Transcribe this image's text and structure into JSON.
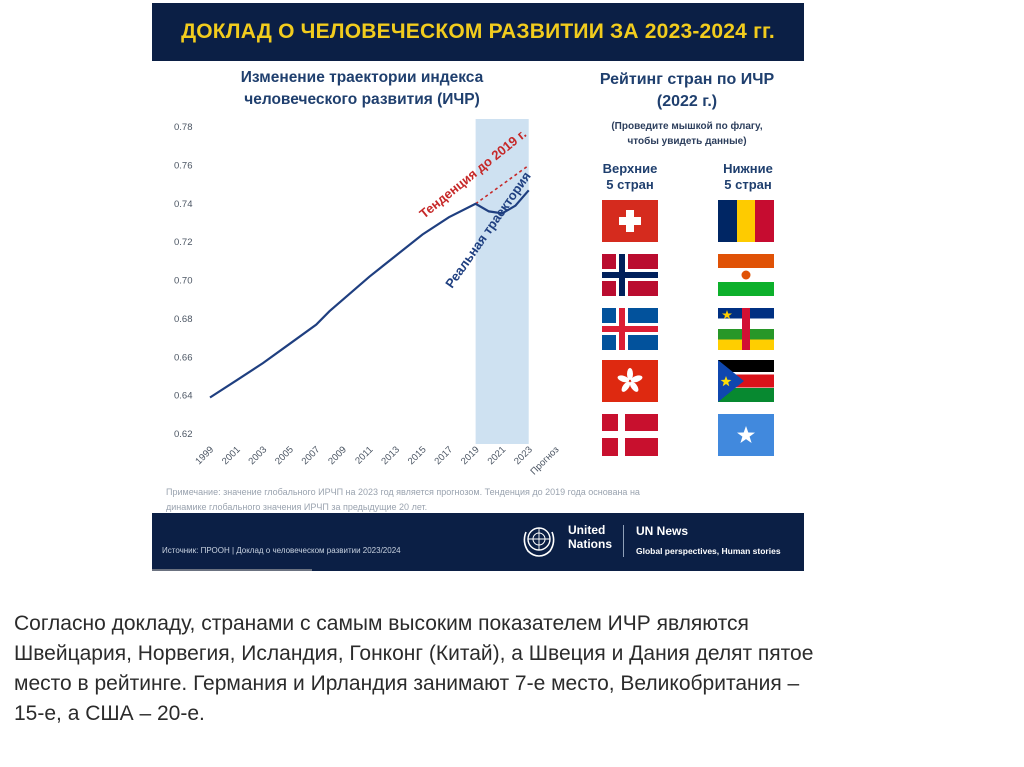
{
  "slide": {
    "banner_title": "ДОКЛАД О ЧЕЛОВЕЧЕСКОМ РАЗВИТИИ ЗА 2023-2024 гг.",
    "chart_title_line1": "Изменение траектории индекса",
    "chart_title_line2": "человеческого развития (ИЧР)",
    "note_line1": "Примечание: значение глобального ИРЧП на 2023 год является прогнозом. Тенденция до 2019 года основана на",
    "note_line2": "динамике глобального значения ИРЧП за предыдущие 20 лет.",
    "ranking": {
      "title_line1": "Рейтинг стран по ИЧР",
      "title_line2": "(2022 г.)",
      "subtitle_line1": "(Проведите мышкой по флагу,",
      "subtitle_line2": "чтобы увидеть данные)",
      "top_heading_line1": "Верхние",
      "top_heading_line2": "5 стран",
      "bottom_heading_line1": "Нижние",
      "bottom_heading_line2": "5 стран",
      "top_flags": [
        "switzerland-flag",
        "norway-flag",
        "iceland-flag",
        "hong-kong-flag",
        "denmark-flag"
      ],
      "bottom_flags": [
        "chad-flag",
        "niger-flag",
        "central-african-republic-flag",
        "south-sudan-flag",
        "somalia-flag"
      ]
    },
    "footer": {
      "source": "Источник: ПРООН | Доклад о человеческом развитии 2023/2024",
      "un_name_line1": "United",
      "un_name_line2": "Nations",
      "news": "UN News",
      "tagline": "Global perspectives, Human stories"
    },
    "colors": {
      "banner_bg": "#0b1f45",
      "banner_text": "#f2cc1d",
      "line": "#1f3f80",
      "trend": "#c62828",
      "highlight": "#c5dcee"
    }
  },
  "chart_data": {
    "type": "line",
    "title": "Изменение траектории индекса человеческого развития (ИЧР)",
    "x_tick_labels": [
      "1999",
      "2001",
      "2003",
      "2005",
      "2007",
      "2009",
      "2011",
      "2013",
      "2015",
      "2017",
      "2019",
      "2021",
      "2023",
      "Прогноз"
    ],
    "y_tick_labels": [
      "0.78",
      "0.76",
      "0.74",
      "0.72",
      "0.70",
      "0.68",
      "0.66",
      "0.64",
      "0.62"
    ],
    "ylim": [
      0.62,
      0.78
    ],
    "xlim": [
      1999,
      2024
    ],
    "grid": false,
    "highlight_range": [
      2019,
      2023
    ],
    "series": [
      {
        "name": "Реальная траектория",
        "x": [
          1999,
          2001,
          2003,
          2005,
          2007,
          2008,
          2009,
          2011,
          2013,
          2015,
          2017,
          2019,
          2020,
          2021,
          2022,
          2023
        ],
        "y": [
          0.639,
          0.648,
          0.657,
          0.667,
          0.677,
          0.684,
          0.69,
          0.702,
          0.713,
          0.724,
          0.733,
          0.74,
          0.736,
          0.735,
          0.739,
          0.747
        ],
        "style": "solid"
      },
      {
        "name": "Тенденция до 2019 г.",
        "x": [
          2019,
          2021,
          2023
        ],
        "y": [
          0.74,
          0.75,
          0.76
        ],
        "style": "dashed"
      }
    ]
  },
  "caption": {
    "line1": "Согласно докладу, странами с самым высоким показателем ИЧР являются",
    "line2": "Швейцария, Норвегия, Исландия, Гонконг (Китай), а Швеция и Дания делят пятое",
    "line3": "место в рейтинге. Германия и Ирландия занимают 7-е место, Великобритания –",
    "line4": "15-е, а США – 20-е."
  }
}
